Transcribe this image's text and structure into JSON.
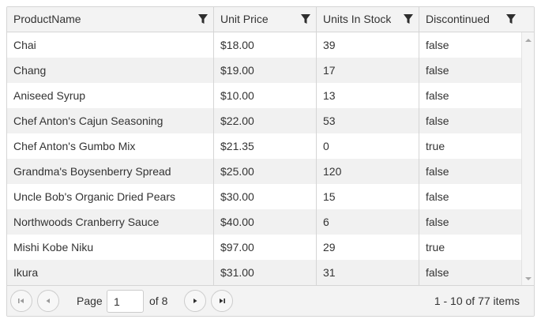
{
  "columns": [
    {
      "label": "ProductName"
    },
    {
      "label": "Unit Price"
    },
    {
      "label": "Units In Stock"
    },
    {
      "label": "Discontinued"
    }
  ],
  "rows": [
    [
      "Chai",
      "$18.00",
      "39",
      "false"
    ],
    [
      "Chang",
      "$19.00",
      "17",
      "false"
    ],
    [
      "Aniseed Syrup",
      "$10.00",
      "13",
      "false"
    ],
    [
      "Chef Anton's Cajun Seasoning",
      "$22.00",
      "53",
      "false"
    ],
    [
      "Chef Anton's Gumbo Mix",
      "$21.35",
      "0",
      "true"
    ],
    [
      "Grandma's Boysenberry Spread",
      "$25.00",
      "120",
      "false"
    ],
    [
      "Uncle Bob's Organic Dried Pears",
      "$30.00",
      "15",
      "false"
    ],
    [
      "Northwoods Cranberry Sauce",
      "$40.00",
      "6",
      "false"
    ],
    [
      "Mishi Kobe Niku",
      "$97.00",
      "29",
      "true"
    ],
    [
      "Ikura",
      "$31.00",
      "31",
      "false"
    ]
  ],
  "pager": {
    "page_label": "Page",
    "current_page": "1",
    "of_label": "of 8",
    "items_info": "1 - 10 of 77 items"
  },
  "icons": {
    "filter": "filter-icon",
    "first": "first-page-icon",
    "prev": "previous-page-icon",
    "next": "next-page-icon",
    "last": "last-page-icon"
  },
  "colors": {
    "header_bg": "#f3f3f3",
    "alt_row_bg": "#f1f1f1",
    "border": "#d5d5d5",
    "text": "#333333"
  }
}
